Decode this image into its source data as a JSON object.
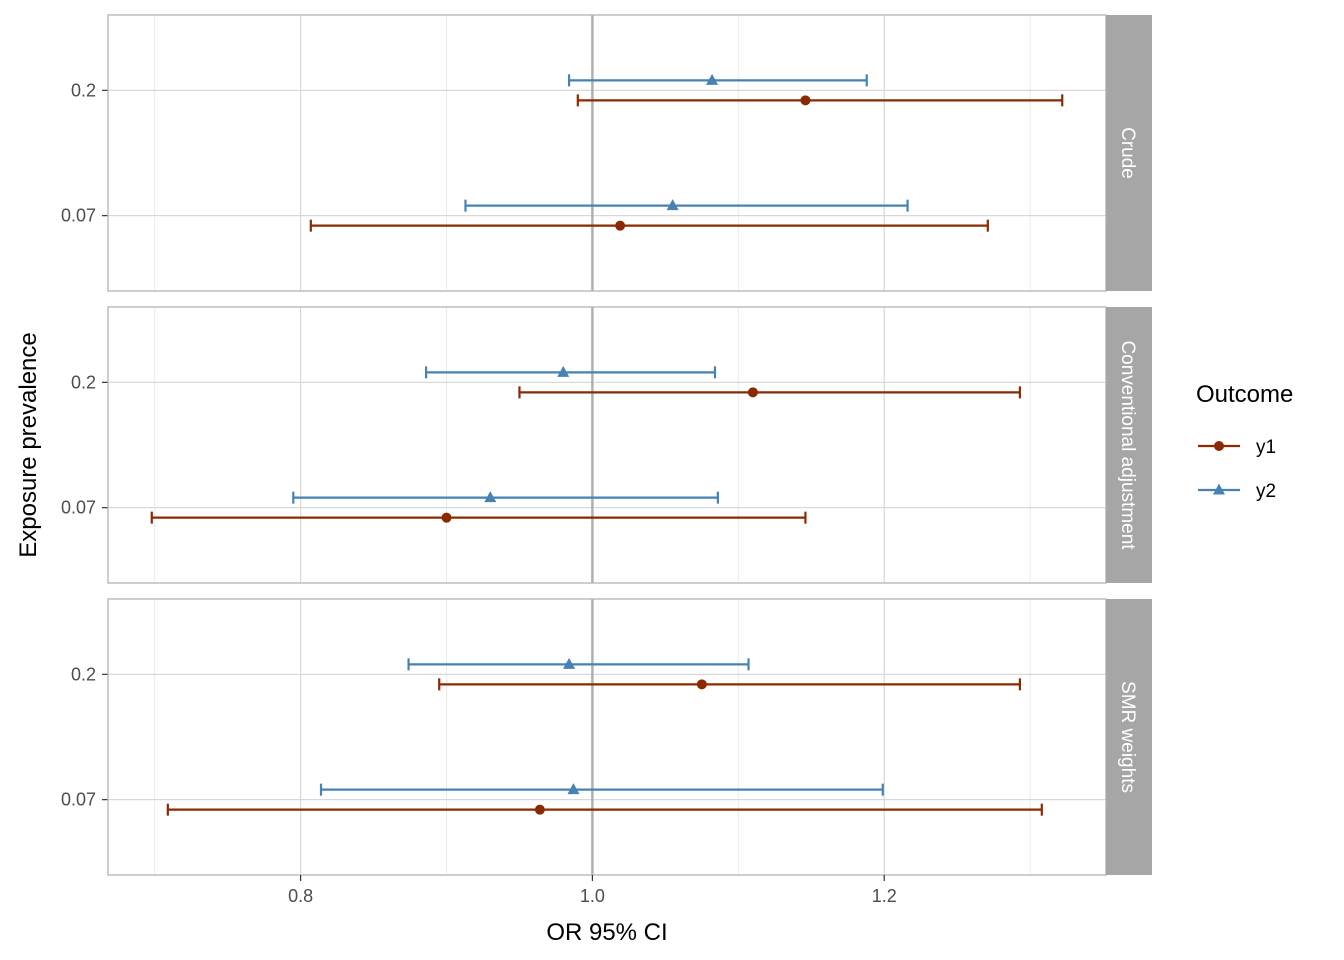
{
  "chart_data": {
    "type": "forest",
    "xlabel": "OR 95% CI",
    "ylabel": "Exposure prevalence",
    "xlim": [
      0.668,
      1.352
    ],
    "x_ticks": [
      0.8,
      1.0,
      1.2
    ],
    "x_tick_labels": [
      "0.8",
      "1.0",
      "1.2"
    ],
    "x_minor_ticks": [
      0.7,
      0.9,
      1.1,
      1.3
    ],
    "reference_line": 1.0,
    "y_categories": [
      "0.2",
      "0.07"
    ],
    "grid": true,
    "legend": {
      "title": "Outcome",
      "position": "right",
      "entries": [
        {
          "label": "y1",
          "color": "#8B2A00",
          "shape": "circle"
        },
        {
          "label": "y2",
          "color": "#4682B4",
          "shape": "triangle"
        }
      ]
    },
    "panels": [
      {
        "label": "Crude",
        "rows": [
          {
            "category": "0.2",
            "y1": {
              "est": 1.146,
              "lo": 0.99,
              "hi": 1.322
            },
            "y2": {
              "est": 1.082,
              "lo": 0.984,
              "hi": 1.188
            }
          },
          {
            "category": "0.07",
            "y1": {
              "est": 1.019,
              "lo": 0.807,
              "hi": 1.271
            },
            "y2": {
              "est": 1.055,
              "lo": 0.913,
              "hi": 1.216
            }
          }
        ]
      },
      {
        "label": "Conventional adjustment",
        "rows": [
          {
            "category": "0.2",
            "y1": {
              "est": 1.11,
              "lo": 0.95,
              "hi": 1.293
            },
            "y2": {
              "est": 0.98,
              "lo": 0.886,
              "hi": 1.084
            }
          },
          {
            "category": "0.07",
            "y1": {
              "est": 0.9,
              "lo": 0.698,
              "hi": 1.146
            },
            "y2": {
              "est": 0.93,
              "lo": 0.795,
              "hi": 1.086
            }
          }
        ]
      },
      {
        "label": "SMR weights",
        "rows": [
          {
            "category": "0.2",
            "y1": {
              "est": 1.075,
              "lo": 0.895,
              "hi": 1.293
            },
            "y2": {
              "est": 0.984,
              "lo": 0.874,
              "hi": 1.107
            }
          },
          {
            "category": "0.07",
            "y1": {
              "est": 0.964,
              "lo": 0.709,
              "hi": 1.308
            },
            "y2": {
              "est": 0.987,
              "lo": 0.814,
              "hi": 1.199
            }
          }
        ]
      }
    ]
  }
}
